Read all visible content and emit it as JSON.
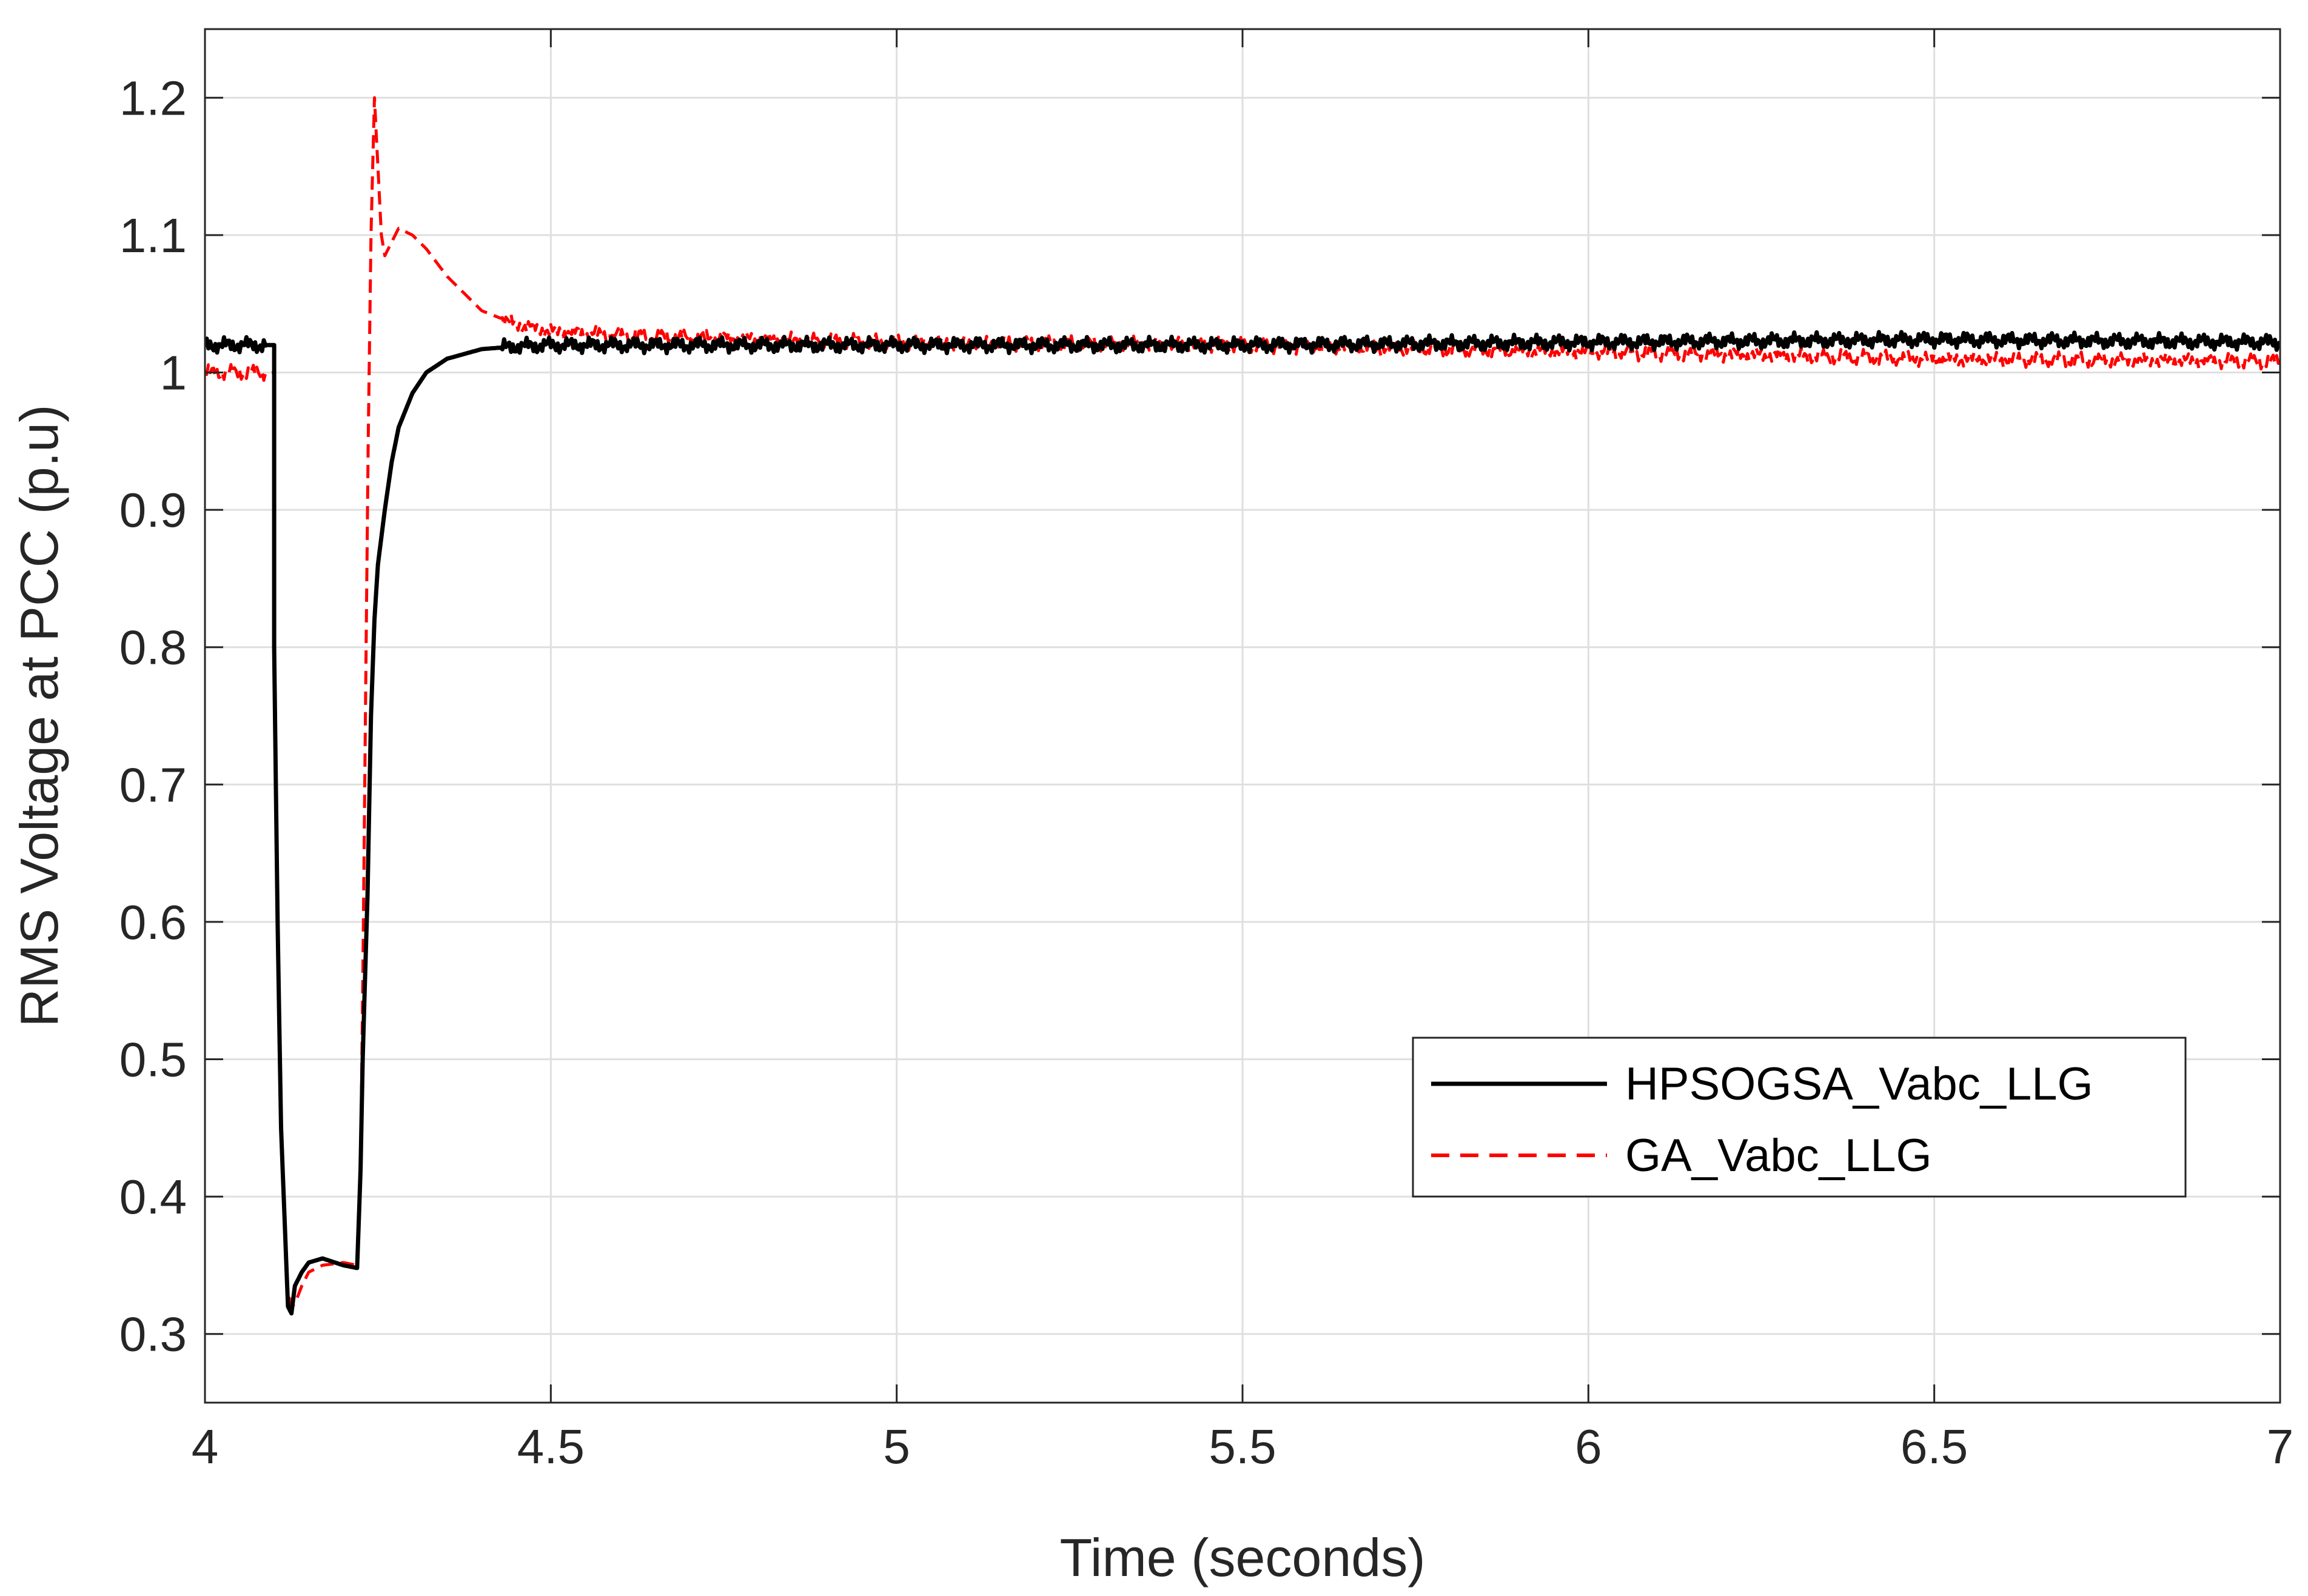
{
  "chart_data": {
    "type": "line",
    "xlabel": "Time (seconds)",
    "ylabel": "RMS Voltage at PCC (p.u)",
    "xlim": [
      4,
      7
    ],
    "ylim": [
      0.25,
      1.25
    ],
    "xticks": [
      4,
      4.5,
      5,
      5.5,
      6,
      6.5,
      7
    ],
    "xtick_labels": [
      "4",
      "4.5",
      "5",
      "5.5",
      "6",
      "6.5",
      "7"
    ],
    "yticks": [
      0.3,
      0.4,
      0.5,
      0.6,
      0.7,
      0.8,
      0.9,
      1,
      1.1,
      1.2
    ],
    "ytick_labels": [
      "0.3",
      "0.4",
      "0.5",
      "0.6",
      "0.7",
      "0.8",
      "0.9",
      "1",
      "1.1",
      "1.2"
    ],
    "grid": true,
    "legend_position": "lower-right",
    "series": [
      {
        "name": "HPSOGSA_Vabc_LLG",
        "color": "#000000",
        "style": "solid",
        "x": [
          4.0,
          4.05,
          4.1,
          4.1,
          4.105,
          4.11,
          4.12,
          4.125,
          4.13,
          4.14,
          4.15,
          4.17,
          4.2,
          4.22,
          4.225,
          4.228,
          4.235,
          4.24,
          4.245,
          4.25,
          4.26,
          4.27,
          4.28,
          4.3,
          4.32,
          4.35,
          4.4,
          4.45,
          4.5,
          4.6,
          4.8,
          5.0,
          5.5,
          6.0,
          6.5,
          7.0
        ],
        "y": [
          1.02,
          1.02,
          1.02,
          0.8,
          0.6,
          0.45,
          0.32,
          0.315,
          0.335,
          0.345,
          0.352,
          0.355,
          0.35,
          0.348,
          0.42,
          0.5,
          0.62,
          0.75,
          0.82,
          0.86,
          0.9,
          0.935,
          0.96,
          0.985,
          1.0,
          1.01,
          1.017,
          1.019,
          1.02,
          1.02,
          1.02,
          1.02,
          1.02,
          1.022,
          1.024,
          1.022
        ]
      },
      {
        "name": "GA_Vabc_LLG",
        "color": "#ff0000",
        "style": "dashed",
        "x": [
          4.0,
          4.05,
          4.1,
          4.1,
          4.105,
          4.11,
          4.12,
          4.125,
          4.13,
          4.14,
          4.15,
          4.17,
          4.2,
          4.22,
          4.225,
          4.228,
          4.232,
          4.236,
          4.24,
          4.245,
          4.25,
          4.255,
          4.26,
          4.27,
          4.28,
          4.3,
          4.32,
          4.35,
          4.38,
          4.4,
          4.45,
          4.5,
          4.6,
          4.8,
          5.0,
          5.5,
          6.0,
          6.5,
          7.0
        ],
        "y": [
          1.0,
          1.0,
          1.0,
          0.8,
          0.6,
          0.45,
          0.33,
          0.32,
          0.322,
          0.335,
          0.345,
          0.35,
          0.352,
          0.35,
          0.42,
          0.55,
          0.75,
          0.95,
          1.1,
          1.2,
          1.15,
          1.1,
          1.085,
          1.095,
          1.105,
          1.1,
          1.09,
          1.07,
          1.055,
          1.045,
          1.035,
          1.03,
          1.027,
          1.024,
          1.022,
          1.02,
          1.015,
          1.01,
          1.008
        ]
      }
    ]
  }
}
